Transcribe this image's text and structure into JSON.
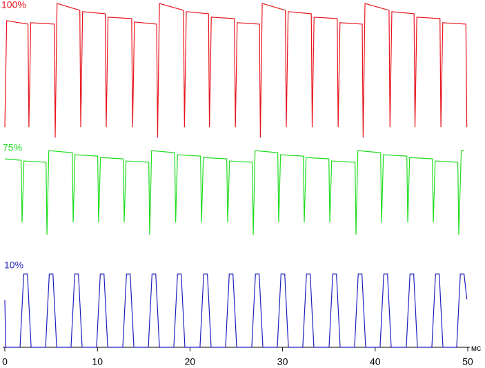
{
  "chart_data": {
    "type": "line",
    "xlabel": "мс",
    "xlim": [
      0,
      50
    ],
    "xticks": [
      0,
      10,
      20,
      30,
      40,
      50
    ],
    "ylim": [
      0,
      100
    ],
    "series": [
      {
        "name": "100%",
        "color": "#e8141c",
        "x": [
          0,
          0.2,
          2.5,
          2.6,
          2.8,
          5.34,
          5.44,
          5.64,
          8.1,
          8.2,
          8.4,
          10.85,
          10.95,
          11.15,
          13.7,
          13.8,
          14.0,
          16.4,
          16.5,
          16.7,
          19.3,
          19.4,
          19.6,
          22.0,
          22.1,
          22.3,
          24.8,
          24.9,
          25.1,
          27.5,
          27.6,
          27.8,
          30.3,
          30.4,
          30.6,
          33.1,
          33.2,
          33.4,
          35.9,
          36.0,
          36.2,
          38.6,
          38.7,
          38.9,
          41.5,
          41.6,
          41.8,
          44.2,
          44.3,
          44.5,
          47.0,
          47.1,
          47.3,
          49.8,
          49.9
        ],
        "values": [
          64,
          95,
          94,
          64,
          94.4,
          94,
          61,
          100,
          98,
          64,
          97.6,
          97,
          64,
          96,
          95.6,
          64,
          94.6,
          94,
          61,
          100,
          98,
          64,
          97.6,
          97,
          64,
          96,
          95.6,
          64,
          94.4,
          94,
          61,
          100,
          98,
          64,
          97.6,
          97,
          64,
          96,
          95.6,
          64,
          94.4,
          94,
          61,
          100,
          98,
          64,
          97.6,
          97,
          64,
          96,
          95.6,
          64,
          94.4,
          94,
          64
        ]
      },
      {
        "name": "75%",
        "color": "#1edc1e",
        "x": [
          0,
          1.76,
          1.86,
          2.06,
          4.45,
          4.55,
          4.75,
          7.28,
          7.38,
          7.58,
          10.03,
          10.13,
          10.33,
          12.79,
          12.89,
          13.09,
          15.55,
          15.65,
          15.85,
          18.35,
          18.45,
          18.65,
          21.14,
          21.24,
          21.44,
          23.97,
          24.07,
          24.27,
          26.73,
          26.83,
          27.03,
          29.48,
          29.58,
          29.78,
          32.24,
          32.34,
          32.54,
          35.0,
          35.1,
          35.3,
          37.83,
          37.93,
          38.13,
          40.59,
          40.69,
          40.89,
          43.42,
          43.52,
          43.72,
          46.18,
          46.28,
          46.48,
          48.93,
          49.03,
          49.3,
          49.6
        ],
        "values": [
          54.8,
          54.4,
          36.3,
          54.2,
          53.8,
          32.7,
          57.2,
          56.6,
          36.3,
          56,
          55.6,
          36.3,
          55.2,
          54.8,
          36.3,
          54.2,
          53.8,
          32.7,
          57.2,
          56.6,
          36.3,
          56,
          55.6,
          36.3,
          55.2,
          54.8,
          36.3,
          54.2,
          53.8,
          32.7,
          57.2,
          56.6,
          36.3,
          56,
          55.6,
          36.3,
          55.2,
          54.8,
          36.3,
          54.2,
          53.8,
          32.7,
          57.2,
          56.6,
          36.3,
          56,
          55.6,
          36.3,
          55.2,
          54.8,
          36.3,
          54.2,
          53.8,
          32.7,
          57.2,
          57.2
        ]
      },
      {
        "name": "10%",
        "color": "#1e1ebe",
        "x": [
          0,
          0.1,
          1.64,
          2.04,
          2.44,
          2.84,
          4.4,
          4.8,
          5.2,
          5.6,
          7.15,
          7.55,
          7.95,
          8.35,
          9.91,
          10.31,
          10.71,
          11.11,
          12.74,
          13.14,
          13.54,
          13.94,
          15.5,
          15.9,
          16.3,
          16.7,
          18.25,
          18.65,
          19.05,
          19.45,
          21.08,
          21.48,
          21.88,
          22.28,
          23.84,
          24.24,
          24.64,
          25.04,
          26.67,
          27.07,
          27.47,
          27.87,
          29.43,
          29.83,
          30.23,
          30.63,
          32.18,
          32.58,
          32.98,
          33.38,
          35.02,
          35.42,
          35.82,
          36.22,
          37.77,
          38.17,
          38.57,
          38.97,
          40.53,
          40.93,
          41.33,
          41.73,
          43.36,
          43.76,
          44.16,
          44.56,
          46.12,
          46.52,
          46.92,
          47.32,
          48.8,
          49.2,
          49.6,
          49.9
        ],
        "values": [
          13.7,
          0,
          0,
          21.3,
          21.3,
          0,
          0,
          21.3,
          21.3,
          0,
          0,
          21.3,
          21.3,
          0,
          0,
          21.3,
          21.3,
          0,
          0,
          21.3,
          21.3,
          0,
          0,
          21.3,
          21.3,
          0,
          0,
          21.3,
          21.3,
          0,
          0,
          21.3,
          21.3,
          0,
          0,
          21.3,
          21.3,
          0,
          0,
          21.3,
          21.3,
          0,
          0,
          21.3,
          21.3,
          0,
          0,
          21.3,
          21.3,
          0,
          0,
          21.3,
          21.3,
          0,
          0,
          21.3,
          21.3,
          0,
          0,
          21.3,
          21.3,
          0,
          0,
          21.3,
          21.3,
          0,
          0,
          21.3,
          21.3,
          0,
          0,
          21.3,
          21.3,
          14
        ]
      }
    ]
  }
}
